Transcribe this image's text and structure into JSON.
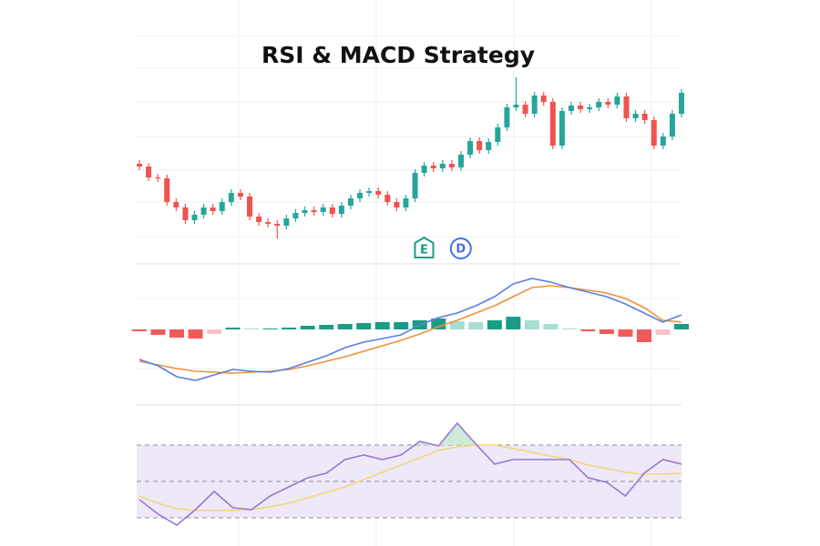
{
  "chart_data": [
    {
      "type": "candlestick",
      "title": "RSI & MACD Strategy",
      "up_color": "#26a69a",
      "down_color": "#ef5350",
      "ylim": [
        0,
        290
      ],
      "open": [
        110,
        107,
        95,
        94,
        68,
        62,
        48,
        54,
        62,
        58,
        68,
        78,
        74,
        52,
        46,
        44,
        42,
        50,
        56,
        59,
        57,
        62,
        55,
        64,
        72,
        78,
        80,
        76,
        68,
        62,
        72,
        100,
        108,
        105,
        110,
        106,
        120,
        135,
        125,
        134,
        150,
        172,
        175,
        165,
        185,
        178,
        130,
        168,
        174,
        170,
        172,
        178,
        175,
        184,
        160,
        165,
        158,
        130,
        140,
        165
      ],
      "high": [
        114,
        111,
        99,
        98,
        72,
        66,
        58,
        66,
        66,
        72,
        82,
        82,
        78,
        56,
        50,
        48,
        54,
        60,
        63,
        63,
        66,
        66,
        68,
        76,
        82,
        84,
        84,
        80,
        72,
        76,
        104,
        112,
        112,
        114,
        114,
        124,
        139,
        139,
        138,
        154,
        176,
        205,
        179,
        189,
        189,
        182,
        172,
        178,
        178,
        176,
        182,
        182,
        188,
        188,
        169,
        169,
        162,
        144,
        169,
        192
      ],
      "low": [
        103,
        91,
        90,
        64,
        58,
        44,
        44,
        50,
        54,
        54,
        64,
        70,
        48,
        42,
        40,
        28,
        38,
        46,
        52,
        53,
        53,
        51,
        51,
        60,
        68,
        74,
        72,
        64,
        58,
        58,
        68,
        96,
        101,
        101,
        102,
        102,
        116,
        121,
        121,
        130,
        146,
        168,
        161,
        161,
        174,
        126,
        126,
        164,
        166,
        166,
        168,
        171,
        171,
        156,
        156,
        154,
        126,
        126,
        136,
        161
      ],
      "close": [
        107,
        95,
        94,
        68,
        62,
        48,
        54,
        62,
        58,
        68,
        78,
        74,
        52,
        46,
        44,
        42,
        50,
        56,
        59,
        57,
        62,
        55,
        64,
        72,
        78,
        80,
        76,
        68,
        62,
        72,
        100,
        108,
        105,
        110,
        106,
        120,
        135,
        125,
        134,
        150,
        172,
        175,
        165,
        185,
        178,
        130,
        168,
        174,
        170,
        172,
        178,
        175,
        184,
        160,
        165,
        158,
        130,
        140,
        165,
        188
      ],
      "markers": [
        {
          "label": "E",
          "color": "#1a9c85",
          "index": 29
        },
        {
          "label": "D",
          "color": "#4a6fe0",
          "index": 33
        }
      ]
    },
    {
      "type": "macd",
      "ylim": [
        -8.3,
        7.2
      ],
      "series": [
        {
          "name": "MACD",
          "color": "#5b7fe0",
          "values": [
            -3.3,
            -4.0,
            -5.2,
            -5.6,
            -5.0,
            -4.4,
            -4.6,
            -4.7,
            -4.3,
            -3.6,
            -2.9,
            -2.0,
            -1.4,
            -1.0,
            -0.6,
            0.5,
            1.3,
            1.8,
            2.6,
            3.6,
            5.0,
            5.6,
            5.2,
            4.6,
            4.1,
            3.6,
            2.8,
            1.8,
            0.8,
            1.6
          ]
        },
        {
          "name": "Signal",
          "color": "#f0913a",
          "values": [
            -3.5,
            -3.9,
            -4.3,
            -4.6,
            -4.7,
            -4.8,
            -4.7,
            -4.6,
            -4.4,
            -4.0,
            -3.5,
            -3.0,
            -2.4,
            -1.8,
            -1.2,
            -0.5,
            0.3,
            1.0,
            1.8,
            2.6,
            3.6,
            4.6,
            4.8,
            4.6,
            4.3,
            4.0,
            3.4,
            2.4,
            1.0,
            0.8
          ]
        }
      ],
      "histogram": [
        -0.2,
        -0.6,
        -0.9,
        -1.0,
        -0.5,
        0.2,
        0.1,
        0.1,
        0.2,
        0.4,
        0.5,
        0.6,
        0.7,
        0.8,
        0.8,
        1.0,
        1.2,
        0.9,
        0.8,
        1.0,
        1.4,
        1.0,
        0.6,
        0.1,
        -0.2,
        -0.5,
        -0.8,
        -1.4,
        -0.6,
        0.6
      ],
      "histogram_colors": {
        "up_rising": "#1a9c85",
        "up_falling": "#a8ddd3",
        "down_falling": "#f25a5a",
        "down_rising": "#f8c1c6"
      }
    },
    {
      "type": "rsi",
      "ylim": [
        14.5,
        92
      ],
      "levels": [
        30,
        50,
        70
      ],
      "band_color": "#efe8f8",
      "overbought_fill": "#cdebd8",
      "series": [
        {
          "name": "RSI",
          "color": "#9a78cf",
          "values": [
            40,
            32,
            26,
            34.5,
            44.5,
            35.5,
            34.5,
            42,
            47,
            52,
            54.5,
            62,
            64.5,
            62,
            64.5,
            72,
            69.5,
            82,
            70.5,
            59.5,
            62,
            62,
            62,
            62,
            52,
            49.5,
            42,
            54.5,
            62,
            59.5
          ]
        },
        {
          "name": "RSI MA",
          "color": "#f2d77a",
          "values": [
            42,
            38,
            35,
            34,
            34,
            34,
            34.5,
            36,
            38,
            41,
            44,
            47,
            51,
            55,
            59,
            63,
            67,
            69,
            70,
            70,
            68,
            66,
            64,
            62,
            59,
            57,
            55,
            54,
            54,
            54.5
          ]
        }
      ]
    }
  ]
}
